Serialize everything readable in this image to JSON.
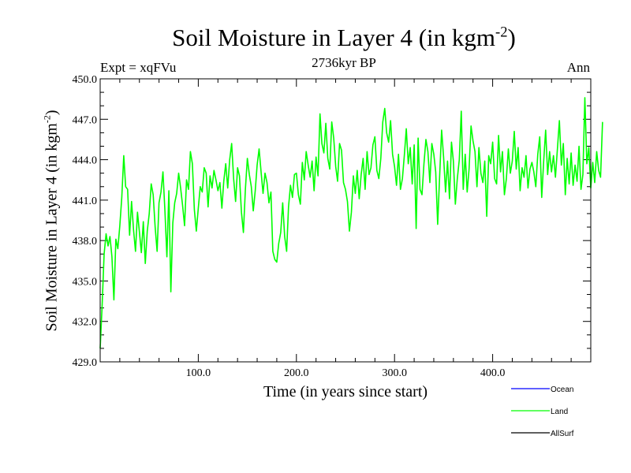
{
  "chart_data": {
    "type": "line",
    "title_main": "Soil Moisture in Layer 4 (in kgm",
    "title_sup": "-2",
    "title_end": ")",
    "subtitle_left": "Expt = xqFVu",
    "subtitle_center": "2736kyr BP",
    "subtitle_right": "Ann",
    "xlabel": "Time (in years since start)",
    "ylabel_main": "Soil Moisture in Layer 4 (in kgm",
    "ylabel_sup": "-2",
    "ylabel_end": ")",
    "xlim": [
      0,
      500
    ],
    "ylim": [
      429.0,
      450.0
    ],
    "x_ticks": [
      100,
      200,
      300,
      400
    ],
    "x_tick_labels": [
      "100.0",
      "200.0",
      "300.0",
      "400.0"
    ],
    "y_ticks": [
      429,
      432,
      435,
      438,
      441,
      444,
      447,
      450
    ],
    "y_tick_labels": [
      "429.0",
      "432.0",
      "435.0",
      "438.0",
      "441.0",
      "444.0",
      "447.0",
      "450.0"
    ],
    "series": [
      {
        "name": "Ocean",
        "color": "#0000ff",
        "values": []
      },
      {
        "name": "Land",
        "color": "#00ff00",
        "x_step": 2,
        "values": [
          430.0,
          433.2,
          437.0,
          438.5,
          437.6,
          438.3,
          436.8,
          433.6,
          438.1,
          437.4,
          439.1,
          441.2,
          444.3,
          442.0,
          441.8,
          438.4,
          440.9,
          438.8,
          437.2,
          440.1,
          438.6,
          437.1,
          439.4,
          436.3,
          438.7,
          440.0,
          442.2,
          441.4,
          439.0,
          437.2,
          440.8,
          441.6,
          443.1,
          440.2,
          436.8,
          441.7,
          434.2,
          439.3,
          440.8,
          441.5,
          443.0,
          441.9,
          440.6,
          439.1,
          442.5,
          441.8,
          444.6,
          443.7,
          440.3,
          438.7,
          440.4,
          442.0,
          441.6,
          443.4,
          443.0,
          440.5,
          442.8,
          441.9,
          443.2,
          442.5,
          441.7,
          442.3,
          440.4,
          442.4,
          443.7,
          441.9,
          444.0,
          445.2,
          442.6,
          440.9,
          443.4,
          442.8,
          440.1,
          438.6,
          441.8,
          444.1,
          442.9,
          442.0,
          440.2,
          441.7,
          443.6,
          444.8,
          443.1,
          441.5,
          443.0,
          442.3,
          440.8,
          441.6,
          437.2,
          436.6,
          436.4,
          437.8,
          438.6,
          440.8,
          438.3,
          437.2,
          440.5,
          442.1,
          441.2,
          442.9,
          443.0,
          441.4,
          440.7,
          443.8,
          442.5,
          444.6,
          443.6,
          442.7,
          443.9,
          441.7,
          444.2,
          442.8,
          447.4,
          445.2,
          444.5,
          446.7,
          444.1,
          443.3,
          446.8,
          445.6,
          443.5,
          442.4,
          445.2,
          444.7,
          442.3,
          441.8,
          440.9,
          438.7,
          440.1,
          442.8,
          441.5,
          443.2,
          441.1,
          442.9,
          444.1,
          441.8,
          444.6,
          442.9,
          443.4,
          445.1,
          445.7,
          443.2,
          442.6,
          444.1,
          446.8,
          447.8,
          446.0,
          445.3,
          446.9,
          444.4,
          443.5,
          442.1,
          444.4,
          441.8,
          442.6,
          444.3,
          446.3,
          443.7,
          444.9,
          442.2,
          445.1,
          438.9,
          445.6,
          441.8,
          441.4,
          443.7,
          445.5,
          444.6,
          442.3,
          445.2,
          444.4,
          443.1,
          439.2,
          442.8,
          446.2,
          444.2,
          441.6,
          443.9,
          441.1,
          445.3,
          443.9,
          440.7,
          442.6,
          444.0,
          447.6,
          441.8,
          444.4,
          441.6,
          443.3,
          446.5,
          445.4,
          444.6,
          442.0,
          444.9,
          443.0,
          442.3,
          443.9,
          439.8,
          444.3,
          443.7,
          445.3,
          442.6,
          442.2,
          445.8,
          443.1,
          444.6,
          441.4,
          442.6,
          444.8,
          443.0,
          443.9,
          446.1,
          443.3,
          444.9,
          441.7,
          443.4,
          442.7,
          444.3,
          441.9,
          443.3,
          443.8,
          443.1,
          442.0,
          444.4,
          445.7,
          441.2,
          443.9,
          446.2,
          442.9,
          444.6,
          443.1,
          444.3,
          442.7,
          444.8,
          446.9,
          443.6,
          445.2,
          441.4,
          444.1,
          442.2,
          444.5,
          442.1,
          443.6,
          442.4,
          445.0,
          441.8,
          442.9,
          448.6,
          443.7,
          444.9,
          441.9,
          443.8,
          442.3,
          444.6,
          443.2,
          442.7,
          446.8
        ]
      },
      {
        "name": "AllSurf",
        "color": "#000000",
        "values": []
      }
    ],
    "legend_position": "bottom-right"
  }
}
